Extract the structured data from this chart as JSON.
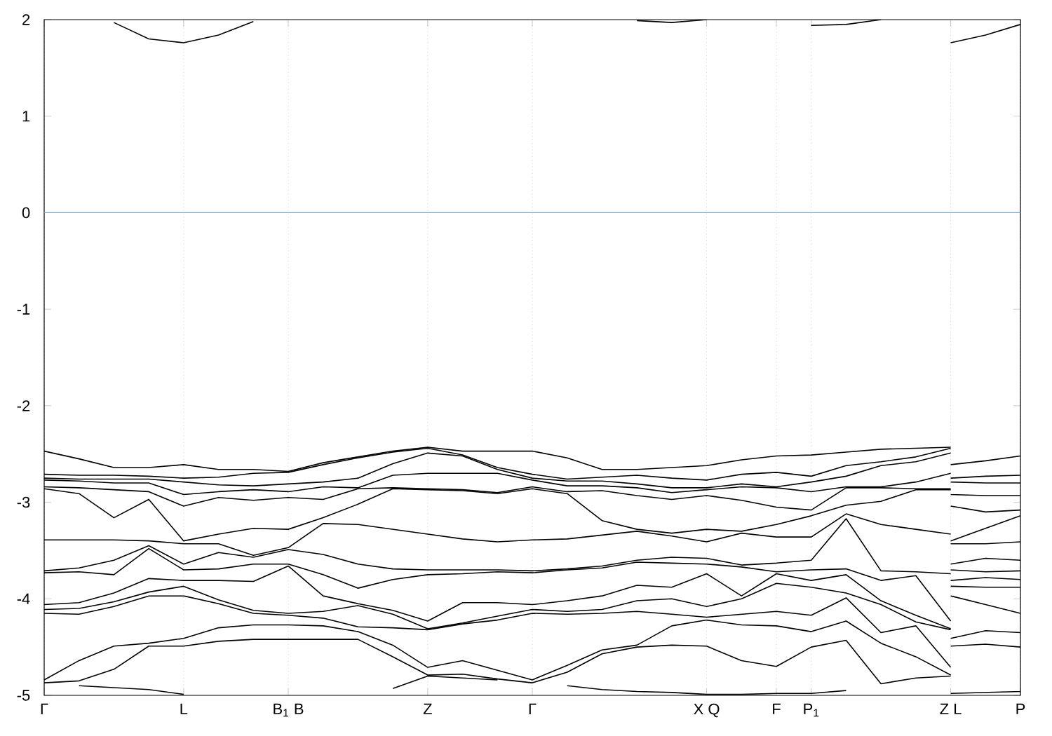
{
  "chart_data": {
    "type": "line",
    "categories": [
      "Γ",
      null,
      null,
      null,
      "L",
      null,
      null,
      "B$_{1}$ B",
      null,
      null,
      null,
      "Z",
      null,
      null,
      "Γ",
      null,
      null,
      null,
      null,
      "X Q",
      null,
      "F",
      "P$_{1}$",
      null,
      null,
      null,
      "Z L",
      null,
      "P"
    ],
    "ylim": [
      -5,
      2
    ],
    "yticks": [
      -5,
      -4,
      -3,
      -2,
      -1,
      0,
      1,
      2
    ],
    "grid": "x",
    "ref_lines": [
      {
        "axis": "y",
        "value": 0,
        "color": "#56b4e9"
      }
    ],
    "series": [
      {
        "color": "#000000",
        "values": [
          -2.47,
          -2.55,
          -2.64,
          -2.64,
          -2.61,
          -2.66,
          -2.66,
          -2.68,
          -2.59,
          -2.53,
          -2.47,
          -2.43,
          -2.47,
          -2.47,
          -2.47,
          -2.54,
          -2.66,
          -2.66,
          -2.64,
          -2.62,
          -2.56,
          -2.52,
          -2.51,
          -2.48,
          -2.45,
          -2.44,
          -2.43,
          null,
          null
        ]
      },
      {
        "color": "#000000",
        "values": [
          -2.71,
          -2.72,
          -2.72,
          -2.73,
          -2.75,
          -2.74,
          -2.7,
          -2.69,
          -2.61,
          -2.54,
          -2.48,
          -2.44,
          -2.51,
          -2.64,
          -2.71,
          -2.76,
          -2.74,
          -2.72,
          -2.75,
          -2.77,
          -2.71,
          -2.69,
          -2.73,
          -2.62,
          -2.58,
          -2.53,
          -2.44,
          null,
          null
        ]
      },
      {
        "color": "#000000",
        "values": [
          -2.75,
          -2.76,
          -2.76,
          -2.76,
          -2.79,
          -2.82,
          -2.83,
          -2.81,
          -2.79,
          -2.75,
          -2.6,
          -2.49,
          -2.52,
          -2.66,
          -2.75,
          -2.78,
          -2.78,
          -2.81,
          -2.85,
          -2.85,
          -2.81,
          -2.84,
          -2.79,
          -2.73,
          -2.62,
          -2.58,
          -2.49,
          null,
          null
        ]
      },
      {
        "color": "#000000",
        "values": [
          -2.77,
          -2.78,
          -2.8,
          -2.8,
          -2.92,
          -2.89,
          -2.87,
          -2.89,
          -2.84,
          -2.85,
          -2.72,
          -2.7,
          -2.7,
          -2.7,
          -2.77,
          -2.83,
          -2.83,
          -2.85,
          -2.9,
          -2.87,
          -2.84,
          -2.85,
          -2.89,
          -2.84,
          -2.84,
          -2.79,
          -2.7,
          null,
          null
        ]
      },
      {
        "color": "#000000",
        "values": [
          -2.84,
          -2.85,
          -2.87,
          -2.89,
          -3.04,
          -2.95,
          -2.98,
          -2.95,
          -2.97,
          -2.86,
          -2.85,
          -2.86,
          -2.87,
          -2.9,
          -2.84,
          -2.89,
          -2.88,
          -2.93,
          -2.97,
          -2.93,
          -2.98,
          -3.05,
          -3.08,
          -2.85,
          -2.85,
          -2.86,
          -2.86,
          null,
          null
        ]
      },
      {
        "color": "#000000",
        "values": [
          -2.86,
          -2.91,
          -3.16,
          -2.97,
          -3.4,
          -3.33,
          -3.27,
          -3.28,
          -3.16,
          -3.02,
          -2.86,
          -2.87,
          -2.88,
          -2.91,
          -2.86,
          -2.91,
          -3.19,
          -3.28,
          -3.32,
          -3.28,
          -3.3,
          -3.23,
          -3.14,
          -3.03,
          -2.99,
          -2.87,
          -2.87,
          null,
          null
        ]
      },
      {
        "color": "#000000",
        "values": [
          -3.39,
          -3.39,
          -3.39,
          -3.4,
          -3.43,
          -3.43,
          -3.55,
          -3.47,
          -3.22,
          -3.23,
          -3.28,
          -3.33,
          -3.38,
          -3.41,
          -3.39,
          -3.38,
          -3.34,
          -3.3,
          -3.35,
          -3.41,
          -3.32,
          -3.36,
          -3.36,
          -3.12,
          -3.23,
          -3.28,
          -3.33,
          null,
          null
        ]
      },
      {
        "color": "#000000",
        "values": [
          -3.71,
          -3.68,
          -3.6,
          -3.45,
          -3.64,
          -3.52,
          -3.57,
          -3.49,
          -3.54,
          -3.64,
          -3.69,
          -3.7,
          -3.7,
          -3.7,
          -3.71,
          -3.69,
          -3.66,
          -3.6,
          -3.57,
          -3.58,
          -3.65,
          -3.63,
          -3.6,
          -3.17,
          -3.71,
          -3.72,
          -3.74,
          null,
          null
        ]
      },
      {
        "color": "#000000",
        "values": [
          -3.73,
          -3.72,
          -3.75,
          -3.48,
          -3.7,
          -3.69,
          -3.64,
          -3.64,
          -3.75,
          -3.89,
          -3.8,
          -3.75,
          -3.74,
          -3.72,
          -3.73,
          -3.7,
          -3.68,
          -3.62,
          -3.63,
          -3.64,
          -3.67,
          -3.72,
          -3.7,
          -3.69,
          -3.81,
          -3.76,
          -4.23,
          null,
          null
        ]
      },
      {
        "color": "#000000",
        "values": [
          -4.06,
          -4.04,
          -3.94,
          -3.79,
          -3.81,
          -3.81,
          -3.82,
          -3.66,
          -3.97,
          -4.05,
          -4.12,
          -4.23,
          -4.04,
          -4.04,
          -4.06,
          -4.02,
          -3.97,
          -3.86,
          -3.88,
          -3.74,
          -3.97,
          -3.74,
          -3.81,
          -3.75,
          -4.02,
          -4.17,
          -4.31,
          null,
          null
        ]
      },
      {
        "color": "#000000",
        "values": [
          -4.11,
          -4.1,
          -4.03,
          -3.93,
          -3.87,
          -4.01,
          -4.12,
          -4.15,
          -4.13,
          -4.07,
          -4.16,
          -4.31,
          -4.25,
          -4.18,
          -4.11,
          -4.13,
          -4.11,
          -4.02,
          -4.0,
          -4.08,
          -4.0,
          -3.84,
          -3.88,
          -3.94,
          -4.06,
          -4.24,
          -4.32,
          null,
          null
        ]
      },
      {
        "color": "#000000",
        "values": [
          -4.15,
          -4.16,
          -4.08,
          -3.97,
          -3.97,
          -4.05,
          -4.15,
          -4.17,
          -4.2,
          -4.29,
          -4.3,
          -4.32,
          -4.26,
          -4.22,
          -4.15,
          -4.16,
          -4.15,
          -4.13,
          -4.16,
          -4.19,
          -4.16,
          -4.13,
          -4.17,
          -3.99,
          -4.35,
          -4.28,
          -4.71,
          null,
          null
        ]
      },
      {
        "color": "#000000",
        "values": [
          -4.84,
          -4.64,
          -4.49,
          -4.46,
          -4.41,
          -4.3,
          -4.27,
          -4.27,
          -4.28,
          -4.34,
          -4.48,
          -4.71,
          -4.64,
          -4.74,
          -4.84,
          -4.69,
          -4.53,
          -4.48,
          -4.28,
          -4.22,
          -4.27,
          -4.28,
          -4.34,
          -4.23,
          -4.46,
          -4.6,
          -4.79,
          null,
          null
        ]
      },
      {
        "color": "#000000",
        "values": [
          -4.87,
          -4.85,
          -4.73,
          -4.49,
          -4.49,
          -4.44,
          -4.42,
          -4.42,
          -4.42,
          -4.42,
          -4.6,
          -4.79,
          -4.78,
          -4.83,
          -4.87,
          -4.76,
          -4.57,
          -4.5,
          -4.48,
          -4.49,
          -4.64,
          -4.7,
          -4.5,
          -4.43,
          -4.88,
          -4.82,
          -4.8,
          null,
          null
        ]
      },
      {
        "color": "#000000",
        "values": [
          null,
          -4.9,
          -4.92,
          -4.94,
          -4.99,
          null,
          null,
          null,
          null,
          null,
          -4.93,
          -4.8,
          -4.82,
          -4.84,
          null,
          -4.9,
          -4.94,
          -4.96,
          -4.97,
          -4.99,
          -4.99,
          -4.98,
          -4.98,
          -4.95,
          null,
          null,
          null,
          null,
          null
        ]
      },
      {
        "color": "#000000",
        "values": [
          null,
          null,
          1.97,
          1.8,
          1.76,
          1.84,
          1.98,
          null,
          null,
          null,
          null,
          null,
          null,
          null,
          null,
          null,
          null,
          1.99,
          1.97,
          2.0,
          null,
          null,
          1.94,
          1.95,
          2.0,
          null,
          null,
          null,
          null
        ]
      },
      {
        "color": "#000000",
        "values": [
          null,
          null,
          null,
          null,
          null,
          null,
          null,
          null,
          null,
          null,
          null,
          null,
          null,
          null,
          null,
          null,
          null,
          null,
          null,
          null,
          null,
          null,
          null,
          null,
          null,
          null,
          1.76,
          1.84,
          1.95
        ]
      },
      {
        "color": "#000000",
        "values": [
          null,
          null,
          null,
          null,
          null,
          null,
          null,
          null,
          null,
          null,
          null,
          null,
          null,
          null,
          null,
          null,
          null,
          null,
          null,
          null,
          null,
          null,
          null,
          null,
          null,
          null,
          -2.61,
          -2.57,
          -2.52
        ]
      },
      {
        "color": "#000000",
        "values": [
          null,
          null,
          null,
          null,
          null,
          null,
          null,
          null,
          null,
          null,
          null,
          null,
          null,
          null,
          null,
          null,
          null,
          null,
          null,
          null,
          null,
          null,
          null,
          null,
          null,
          null,
          -2.75,
          -2.73,
          -2.72
        ]
      },
      {
        "color": "#000000",
        "values": [
          null,
          null,
          null,
          null,
          null,
          null,
          null,
          null,
          null,
          null,
          null,
          null,
          null,
          null,
          null,
          null,
          null,
          null,
          null,
          null,
          null,
          null,
          null,
          null,
          null,
          null,
          -2.79,
          -2.8,
          -2.8
        ]
      },
      {
        "color": "#000000",
        "values": [
          null,
          null,
          null,
          null,
          null,
          null,
          null,
          null,
          null,
          null,
          null,
          null,
          null,
          null,
          null,
          null,
          null,
          null,
          null,
          null,
          null,
          null,
          null,
          null,
          null,
          null,
          -2.92,
          -2.93,
          -2.93
        ]
      },
      {
        "color": "#000000",
        "values": [
          null,
          null,
          null,
          null,
          null,
          null,
          null,
          null,
          null,
          null,
          null,
          null,
          null,
          null,
          null,
          null,
          null,
          null,
          null,
          null,
          null,
          null,
          null,
          null,
          null,
          null,
          -3.04,
          -3.1,
          -3.08
        ]
      },
      {
        "color": "#000000",
        "values": [
          null,
          null,
          null,
          null,
          null,
          null,
          null,
          null,
          null,
          null,
          null,
          null,
          null,
          null,
          null,
          null,
          null,
          null,
          null,
          null,
          null,
          null,
          null,
          null,
          null,
          null,
          -3.4,
          -3.27,
          -3.14
        ]
      },
      {
        "color": "#000000",
        "values": [
          null,
          null,
          null,
          null,
          null,
          null,
          null,
          null,
          null,
          null,
          null,
          null,
          null,
          null,
          null,
          null,
          null,
          null,
          null,
          null,
          null,
          null,
          null,
          null,
          null,
          null,
          -3.43,
          -3.43,
          -3.41
        ]
      },
      {
        "color": "#000000",
        "values": [
          null,
          null,
          null,
          null,
          null,
          null,
          null,
          null,
          null,
          null,
          null,
          null,
          null,
          null,
          null,
          null,
          null,
          null,
          null,
          null,
          null,
          null,
          null,
          null,
          null,
          null,
          -3.64,
          -3.58,
          -3.6
        ]
      },
      {
        "color": "#000000",
        "values": [
          null,
          null,
          null,
          null,
          null,
          null,
          null,
          null,
          null,
          null,
          null,
          null,
          null,
          null,
          null,
          null,
          null,
          null,
          null,
          null,
          null,
          null,
          null,
          null,
          null,
          null,
          -3.7,
          -3.72,
          -3.71
        ]
      },
      {
        "color": "#000000",
        "values": [
          null,
          null,
          null,
          null,
          null,
          null,
          null,
          null,
          null,
          null,
          null,
          null,
          null,
          null,
          null,
          null,
          null,
          null,
          null,
          null,
          null,
          null,
          null,
          null,
          null,
          null,
          -3.81,
          -3.78,
          -3.8
        ]
      },
      {
        "color": "#000000",
        "values": [
          null,
          null,
          null,
          null,
          null,
          null,
          null,
          null,
          null,
          null,
          null,
          null,
          null,
          null,
          null,
          null,
          null,
          null,
          null,
          null,
          null,
          null,
          null,
          null,
          null,
          null,
          -3.87,
          -3.88,
          -3.88
        ]
      },
      {
        "color": "#000000",
        "values": [
          null,
          null,
          null,
          null,
          null,
          null,
          null,
          null,
          null,
          null,
          null,
          null,
          null,
          null,
          null,
          null,
          null,
          null,
          null,
          null,
          null,
          null,
          null,
          null,
          null,
          null,
          -3.97,
          -4.06,
          -4.15
        ]
      },
      {
        "color": "#000000",
        "values": [
          null,
          null,
          null,
          null,
          null,
          null,
          null,
          null,
          null,
          null,
          null,
          null,
          null,
          null,
          null,
          null,
          null,
          null,
          null,
          null,
          null,
          null,
          null,
          null,
          null,
          null,
          -4.41,
          -4.33,
          -4.35
        ]
      },
      {
        "color": "#000000",
        "values": [
          null,
          null,
          null,
          null,
          null,
          null,
          null,
          null,
          null,
          null,
          null,
          null,
          null,
          null,
          null,
          null,
          null,
          null,
          null,
          null,
          null,
          null,
          null,
          null,
          null,
          null,
          -4.49,
          -4.47,
          -4.5
        ]
      },
      {
        "color": "#000000",
        "values": [
          null,
          null,
          null,
          null,
          null,
          null,
          null,
          null,
          null,
          null,
          null,
          null,
          null,
          null,
          null,
          null,
          null,
          null,
          null,
          null,
          null,
          null,
          null,
          null,
          null,
          null,
          -4.98,
          -4.97,
          -4.96
        ]
      }
    ]
  }
}
